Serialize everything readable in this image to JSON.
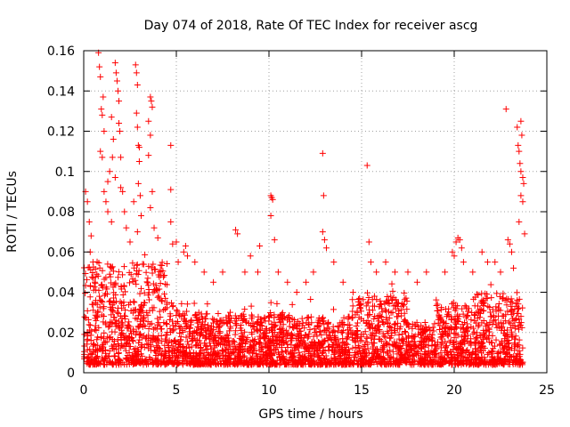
{
  "chart_data": {
    "type": "scatter",
    "title": "Day 074 of 2018, Rate Of TEC Index for receiver ascg",
    "xlabel": "GPS time / hours",
    "ylabel": "ROTI / TECUs",
    "xlim": [
      0,
      25
    ],
    "ylim": [
      0,
      0.16
    ],
    "xticks": [
      0,
      5,
      10,
      15,
      20,
      25
    ],
    "xtick_labels": [
      "0",
      "5",
      "10",
      "15",
      "20",
      "25"
    ],
    "yticks": [
      0,
      0.02,
      0.04,
      0.06,
      0.08,
      0.1,
      0.12,
      0.14,
      0.16
    ],
    "ytick_labels": [
      "0",
      "0.02",
      "0.04",
      "0.06",
      "0.08",
      "0.1",
      "0.12",
      "0.14",
      "0.16"
    ],
    "grid": true,
    "marker": "+",
    "color": "#ff0000",
    "series": [
      {
        "name": "ROTI",
        "points": [
          [
            0.1,
            0.09
          ],
          [
            0.2,
            0.085
          ],
          [
            0.3,
            0.075
          ],
          [
            0.35,
            0.06
          ],
          [
            0.4,
            0.068
          ],
          [
            0.5,
            0.055
          ],
          [
            0.6,
            0.045
          ],
          [
            0.8,
            0.159
          ],
          [
            0.85,
            0.152
          ],
          [
            0.9,
            0.147
          ],
          [
            0.95,
            0.131
          ],
          [
            1.0,
            0.128
          ],
          [
            1.05,
            0.137
          ],
          [
            1.1,
            0.12
          ],
          [
            0.9,
            0.11
          ],
          [
            1.0,
            0.107
          ],
          [
            1.1,
            0.09
          ],
          [
            1.2,
            0.085
          ],
          [
            1.3,
            0.08
          ],
          [
            1.5,
            0.127
          ],
          [
            1.6,
            0.116
          ],
          [
            1.55,
            0.107
          ],
          [
            1.7,
            0.097
          ],
          [
            1.7,
            0.154
          ],
          [
            1.75,
            0.149
          ],
          [
            1.8,
            0.145
          ],
          [
            1.85,
            0.14
          ],
          [
            1.9,
            0.135
          ],
          [
            1.9,
            0.124
          ],
          [
            1.95,
            0.12
          ],
          [
            2.0,
            0.107
          ],
          [
            2.0,
            0.092
          ],
          [
            1.4,
            0.1
          ],
          [
            1.3,
            0.095
          ],
          [
            1.5,
            0.075
          ],
          [
            2.1,
            0.09
          ],
          [
            2.2,
            0.08
          ],
          [
            2.3,
            0.072
          ],
          [
            2.5,
            0.065
          ],
          [
            2.7,
            0.085
          ],
          [
            2.8,
            0.153
          ],
          [
            2.85,
            0.149
          ],
          [
            2.9,
            0.143
          ],
          [
            2.85,
            0.129
          ],
          [
            2.9,
            0.122
          ],
          [
            2.95,
            0.113
          ],
          [
            3.0,
            0.112
          ],
          [
            3.0,
            0.105
          ],
          [
            2.95,
            0.094
          ],
          [
            3.05,
            0.088
          ],
          [
            3.1,
            0.078
          ],
          [
            2.9,
            0.07
          ],
          [
            3.6,
            0.137
          ],
          [
            3.65,
            0.135
          ],
          [
            3.7,
            0.132
          ],
          [
            3.5,
            0.125
          ],
          [
            3.6,
            0.118
          ],
          [
            3.5,
            0.108
          ],
          [
            3.7,
            0.09
          ],
          [
            3.6,
            0.082
          ],
          [
            3.8,
            0.072
          ],
          [
            4.0,
            0.067
          ],
          [
            4.7,
            0.113
          ],
          [
            4.7,
            0.091
          ],
          [
            4.7,
            0.075
          ],
          [
            4.8,
            0.064
          ],
          [
            5.0,
            0.065
          ],
          [
            5.1,
            0.055
          ],
          [
            5.4,
            0.06
          ],
          [
            5.5,
            0.063
          ],
          [
            5.6,
            0.058
          ],
          [
            6.0,
            0.055
          ],
          [
            6.5,
            0.05
          ],
          [
            7.0,
            0.045
          ],
          [
            7.5,
            0.05
          ],
          [
            8.2,
            0.071
          ],
          [
            8.3,
            0.069
          ],
          [
            8.7,
            0.05
          ],
          [
            9.0,
            0.058
          ],
          [
            9.4,
            0.05
          ],
          [
            9.5,
            0.063
          ],
          [
            10.1,
            0.088
          ],
          [
            10.15,
            0.087
          ],
          [
            10.2,
            0.086
          ],
          [
            10.1,
            0.078
          ],
          [
            10.3,
            0.066
          ],
          [
            10.5,
            0.05
          ],
          [
            11.0,
            0.045
          ],
          [
            11.5,
            0.04
          ],
          [
            12.0,
            0.045
          ],
          [
            12.4,
            0.05
          ],
          [
            12.9,
            0.109
          ],
          [
            12.95,
            0.088
          ],
          [
            12.9,
            0.07
          ],
          [
            13.0,
            0.066
          ],
          [
            13.1,
            0.062
          ],
          [
            13.5,
            0.055
          ],
          [
            14.0,
            0.045
          ],
          [
            15.3,
            0.103
          ],
          [
            15.4,
            0.065
          ],
          [
            15.5,
            0.055
          ],
          [
            15.8,
            0.05
          ],
          [
            16.3,
            0.055
          ],
          [
            16.8,
            0.05
          ],
          [
            17.5,
            0.05
          ],
          [
            18.0,
            0.045
          ],
          [
            18.5,
            0.05
          ],
          [
            19.5,
            0.05
          ],
          [
            19.9,
            0.06
          ],
          [
            20.1,
            0.065
          ],
          [
            20.2,
            0.067
          ],
          [
            20.3,
            0.066
          ],
          [
            20.4,
            0.062
          ],
          [
            20.0,
            0.058
          ],
          [
            20.5,
            0.055
          ],
          [
            21.0,
            0.05
          ],
          [
            21.5,
            0.06
          ],
          [
            21.8,
            0.055
          ],
          [
            22.2,
            0.055
          ],
          [
            22.5,
            0.05
          ],
          [
            22.8,
            0.131
          ],
          [
            22.9,
            0.066
          ],
          [
            23.0,
            0.064
          ],
          [
            23.1,
            0.06
          ],
          [
            23.2,
            0.052
          ],
          [
            23.4,
            0.122
          ],
          [
            23.45,
            0.113
          ],
          [
            23.5,
            0.11
          ],
          [
            23.55,
            0.104
          ],
          [
            23.6,
            0.1
          ],
          [
            23.6,
            0.125
          ],
          [
            23.65,
            0.118
          ],
          [
            23.7,
            0.097
          ],
          [
            23.75,
            0.094
          ],
          [
            23.6,
            0.088
          ],
          [
            23.7,
            0.085
          ],
          [
            23.8,
            0.069
          ],
          [
            23.5,
            0.075
          ]
        ]
      }
    ]
  }
}
